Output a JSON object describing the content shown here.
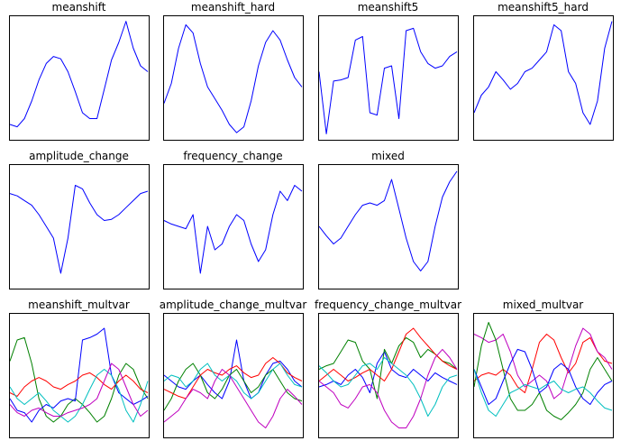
{
  "figure_title": "",
  "colors": {
    "blue": "#0000ff",
    "green": "#008000",
    "red": "#ff0000",
    "cyan": "#00bfbf",
    "magenta": "#bf00bf"
  },
  "chart_data": [
    {
      "type": "line",
      "title": "meanshift",
      "ylim": [
        0,
        1
      ],
      "series": [
        {
          "color": "#0000ff",
          "y": [
            0.1,
            0.08,
            0.15,
            0.3,
            0.48,
            0.62,
            0.68,
            0.66,
            0.55,
            0.38,
            0.2,
            0.15,
            0.15,
            0.4,
            0.65,
            0.8,
            0.98,
            0.75,
            0.6,
            0.55
          ]
        }
      ]
    },
    {
      "type": "line",
      "title": "meanshift_hard",
      "ylim": [
        0,
        1
      ],
      "series": [
        {
          "color": "#0000ff",
          "y": [
            0.28,
            0.45,
            0.75,
            0.95,
            0.88,
            0.62,
            0.42,
            0.32,
            0.22,
            0.1,
            0.03,
            0.08,
            0.3,
            0.6,
            0.8,
            0.9,
            0.82,
            0.65,
            0.5,
            0.42
          ]
        }
      ]
    },
    {
      "type": "line",
      "title": "meanshift5",
      "ylim": [
        0,
        1
      ],
      "series": [
        {
          "color": "#0000ff",
          "y": [
            0.55,
            0.02,
            0.47,
            0.48,
            0.5,
            0.82,
            0.85,
            0.2,
            0.18,
            0.58,
            0.6,
            0.15,
            0.9,
            0.92,
            0.72,
            0.62,
            0.58,
            0.6,
            0.68,
            0.72
          ]
        }
      ]
    },
    {
      "type": "line",
      "title": "meanshift5_hard",
      "ylim": [
        0,
        1
      ],
      "series": [
        {
          "color": "#0000ff",
          "y": [
            0.2,
            0.35,
            0.42,
            0.55,
            0.48,
            0.4,
            0.45,
            0.55,
            0.58,
            0.65,
            0.72,
            0.95,
            0.9,
            0.55,
            0.45,
            0.2,
            0.1,
            0.3,
            0.75,
            0.98
          ]
        }
      ]
    },
    {
      "type": "line",
      "title": "amplitude_change",
      "ylim": [
        0,
        1
      ],
      "series": [
        {
          "color": "#0000ff",
          "y": [
            0.78,
            0.76,
            0.72,
            0.68,
            0.6,
            0.5,
            0.4,
            0.1,
            0.4,
            0.85,
            0.82,
            0.7,
            0.6,
            0.55,
            0.56,
            0.6,
            0.66,
            0.72,
            0.78,
            0.8
          ]
        }
      ]
    },
    {
      "type": "line",
      "title": "frequency_change",
      "ylim": [
        0,
        1
      ],
      "series": [
        {
          "color": "#0000ff",
          "y": [
            0.55,
            0.52,
            0.5,
            0.48,
            0.6,
            0.1,
            0.5,
            0.3,
            0.35,
            0.5,
            0.6,
            0.55,
            0.35,
            0.2,
            0.3,
            0.6,
            0.8,
            0.72,
            0.85,
            0.8
          ]
        }
      ]
    },
    {
      "type": "line",
      "title": "mixed",
      "ylim": [
        0,
        1
      ],
      "series": [
        {
          "color": "#0000ff",
          "y": [
            0.5,
            0.42,
            0.35,
            0.4,
            0.5,
            0.6,
            0.68,
            0.7,
            0.68,
            0.72,
            0.9,
            0.65,
            0.4,
            0.2,
            0.12,
            0.2,
            0.5,
            0.75,
            0.88,
            0.97
          ]
        }
      ]
    },
    {
      "type": "line",
      "title": "meanshift_multvar",
      "ylim": [
        0,
        1
      ],
      "series": [
        {
          "color": "#008000",
          "y": [
            0.62,
            0.8,
            0.82,
            0.6,
            0.3,
            0.15,
            0.1,
            0.15,
            0.25,
            0.3,
            0.25,
            0.18,
            0.1,
            0.15,
            0.3,
            0.5,
            0.6,
            0.55,
            0.4,
            0.3
          ]
        },
        {
          "color": "#0000ff",
          "y": [
            0.3,
            0.2,
            0.18,
            0.1,
            0.2,
            0.25,
            0.22,
            0.28,
            0.3,
            0.28,
            0.8,
            0.82,
            0.85,
            0.9,
            0.5,
            0.35,
            0.3,
            0.25,
            0.28,
            0.32
          ]
        },
        {
          "color": "#ff0000",
          "y": [
            0.35,
            0.32,
            0.4,
            0.45,
            0.48,
            0.45,
            0.4,
            0.38,
            0.42,
            0.45,
            0.5,
            0.52,
            0.48,
            0.42,
            0.38,
            0.45,
            0.5,
            0.45,
            0.38,
            0.35
          ]
        },
        {
          "color": "#00bfbf",
          "y": [
            0.4,
            0.3,
            0.25,
            0.3,
            0.35,
            0.28,
            0.2,
            0.15,
            0.1,
            0.15,
            0.25,
            0.38,
            0.5,
            0.55,
            0.5,
            0.38,
            0.2,
            0.1,
            0.25,
            0.45
          ]
        },
        {
          "color": "#bf00bf",
          "y": [
            0.25,
            0.18,
            0.15,
            0.2,
            0.22,
            0.18,
            0.15,
            0.15,
            0.18,
            0.2,
            0.22,
            0.25,
            0.3,
            0.45,
            0.6,
            0.55,
            0.4,
            0.25,
            0.15,
            0.2
          ]
        }
      ]
    },
    {
      "type": "line",
      "title": "amplitude_change_multvar",
      "ylim": [
        0,
        1
      ],
      "series": [
        {
          "color": "#0000ff",
          "y": [
            0.5,
            0.45,
            0.4,
            0.38,
            0.45,
            0.5,
            0.42,
            0.35,
            0.3,
            0.45,
            0.8,
            0.45,
            0.3,
            0.35,
            0.5,
            0.6,
            0.62,
            0.55,
            0.45,
            0.4
          ]
        },
        {
          "color": "#008000",
          "y": [
            0.2,
            0.3,
            0.45,
            0.55,
            0.6,
            0.5,
            0.35,
            0.3,
            0.38,
            0.5,
            0.55,
            0.45,
            0.35,
            0.4,
            0.5,
            0.55,
            0.45,
            0.35,
            0.3,
            0.28
          ]
        },
        {
          "color": "#ff0000",
          "y": [
            0.38,
            0.35,
            0.32,
            0.3,
            0.4,
            0.5,
            0.55,
            0.52,
            0.5,
            0.55,
            0.58,
            0.52,
            0.48,
            0.5,
            0.6,
            0.65,
            0.6,
            0.52,
            0.48,
            0.45
          ]
        },
        {
          "color": "#00bfbf",
          "y": [
            0.45,
            0.5,
            0.48,
            0.4,
            0.45,
            0.55,
            0.6,
            0.5,
            0.45,
            0.5,
            0.45,
            0.35,
            0.3,
            0.35,
            0.45,
            0.55,
            0.6,
            0.5,
            0.42,
            0.4
          ]
        },
        {
          "color": "#bf00bf",
          "y": [
            0.1,
            0.15,
            0.2,
            0.3,
            0.38,
            0.35,
            0.3,
            0.45,
            0.55,
            0.5,
            0.4,
            0.3,
            0.2,
            0.1,
            0.05,
            0.15,
            0.3,
            0.38,
            0.32,
            0.25
          ]
        }
      ]
    },
    {
      "type": "line",
      "title": "frequency_change_multvar",
      "ylim": [
        0,
        1
      ],
      "series": [
        {
          "color": "#0000ff",
          "y": [
            0.4,
            0.42,
            0.45,
            0.42,
            0.5,
            0.55,
            0.48,
            0.35,
            0.6,
            0.7,
            0.55,
            0.5,
            0.48,
            0.55,
            0.5,
            0.45,
            0.52,
            0.48,
            0.45,
            0.42
          ]
        },
        {
          "color": "#008000",
          "y": [
            0.55,
            0.58,
            0.6,
            0.7,
            0.8,
            0.78,
            0.62,
            0.55,
            0.3,
            0.72,
            0.6,
            0.75,
            0.82,
            0.78,
            0.65,
            0.72,
            0.68,
            0.62,
            0.6,
            0.55
          ]
        },
        {
          "color": "#ff0000",
          "y": [
            0.45,
            0.5,
            0.55,
            0.5,
            0.45,
            0.48,
            0.52,
            0.55,
            0.5,
            0.45,
            0.55,
            0.7,
            0.85,
            0.9,
            0.82,
            0.75,
            0.68,
            0.62,
            0.58,
            0.55
          ]
        },
        {
          "color": "#00bfbf",
          "y": [
            0.58,
            0.52,
            0.45,
            0.4,
            0.42,
            0.5,
            0.58,
            0.6,
            0.55,
            0.65,
            0.6,
            0.55,
            0.5,
            0.42,
            0.3,
            0.15,
            0.25,
            0.4,
            0.48,
            0.5
          ]
        },
        {
          "color": "#bf00bf",
          "y": [
            0.45,
            0.4,
            0.35,
            0.25,
            0.22,
            0.3,
            0.4,
            0.42,
            0.35,
            0.2,
            0.1,
            0.05,
            0.05,
            0.15,
            0.3,
            0.5,
            0.65,
            0.72,
            0.65,
            0.55
          ]
        }
      ]
    },
    {
      "type": "line",
      "title": "mixed_multvar",
      "ylim": [
        0,
        1
      ],
      "series": [
        {
          "color": "#ff0000",
          "y": [
            0.45,
            0.5,
            0.52,
            0.5,
            0.55,
            0.5,
            0.4,
            0.35,
            0.55,
            0.78,
            0.85,
            0.8,
            0.65,
            0.52,
            0.6,
            0.78,
            0.82,
            0.7,
            0.62,
            0.6
          ]
        },
        {
          "color": "#bf00bf",
          "y": [
            0.85,
            0.82,
            0.78,
            0.8,
            0.85,
            0.7,
            0.5,
            0.4,
            0.45,
            0.5,
            0.45,
            0.3,
            0.35,
            0.55,
            0.75,
            0.9,
            0.85,
            0.7,
            0.65,
            0.55
          ]
        },
        {
          "color": "#008000",
          "y": [
            0.4,
            0.75,
            0.95,
            0.8,
            0.55,
            0.3,
            0.2,
            0.2,
            0.25,
            0.35,
            0.2,
            0.15,
            0.12,
            0.18,
            0.25,
            0.35,
            0.55,
            0.65,
            0.55,
            0.45
          ]
        },
        {
          "color": "#0000ff",
          "y": [
            0.55,
            0.4,
            0.25,
            0.3,
            0.45,
            0.6,
            0.72,
            0.7,
            0.55,
            0.35,
            0.4,
            0.55,
            0.6,
            0.55,
            0.4,
            0.3,
            0.25,
            0.35,
            0.42,
            0.45
          ]
        },
        {
          "color": "#00bfbf",
          "y": [
            0.55,
            0.35,
            0.2,
            0.15,
            0.25,
            0.35,
            0.38,
            0.42,
            0.4,
            0.38,
            0.42,
            0.45,
            0.38,
            0.35,
            0.38,
            0.4,
            0.35,
            0.28,
            0.22,
            0.2
          ]
        }
      ]
    }
  ]
}
